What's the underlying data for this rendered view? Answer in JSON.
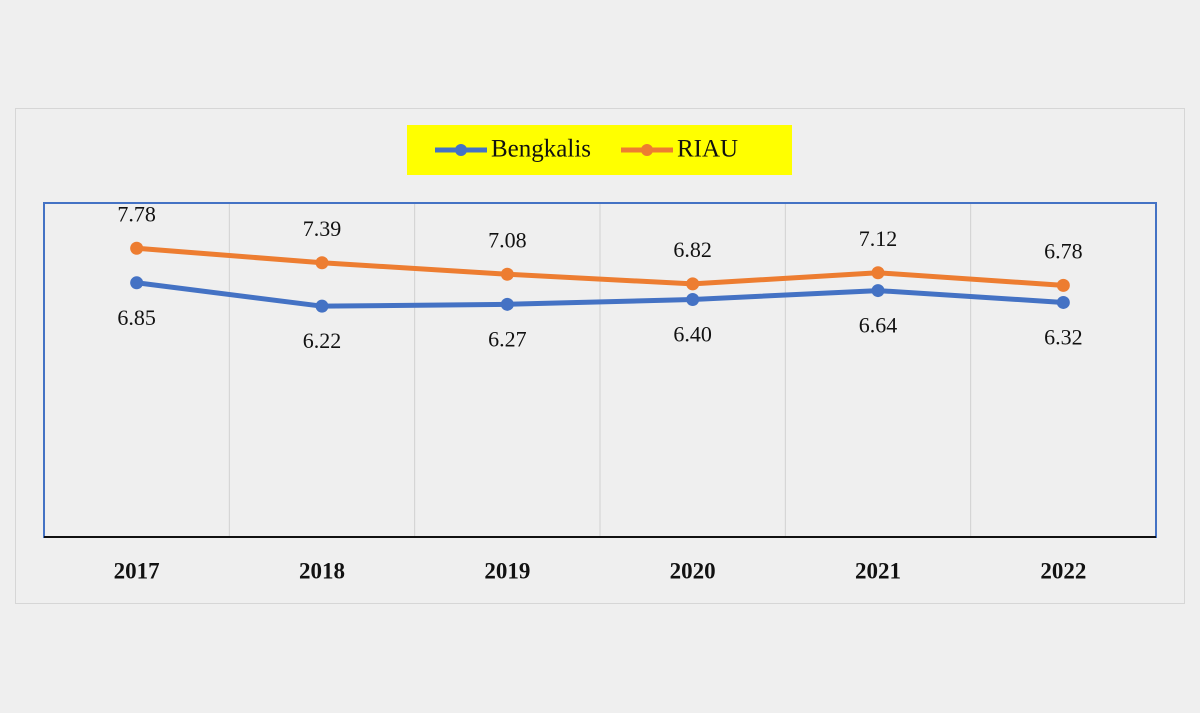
{
  "chart_data": {
    "type": "line",
    "categories": [
      "2017",
      "2018",
      "2019",
      "2020",
      "2021",
      "2022"
    ],
    "series": [
      {
        "name": "Bengkalis",
        "color": "#4472c4",
        "values": [
          6.85,
          6.22,
          6.27,
          6.4,
          6.64,
          6.32
        ],
        "value_labels": [
          "6.85",
          "6.22",
          "6.27",
          "6.40",
          "6.64",
          "6.32"
        ]
      },
      {
        "name": "RIAU",
        "color": "#ed7d31",
        "values": [
          7.78,
          7.39,
          7.08,
          6.82,
          7.12,
          6.78
        ],
        "value_labels": [
          "7.78",
          "7.39",
          "7.08",
          "6.82",
          "7.12",
          "6.78"
        ]
      }
    ],
    "ylim": [
      0,
      9
    ],
    "grid": true,
    "legend": "top"
  }
}
